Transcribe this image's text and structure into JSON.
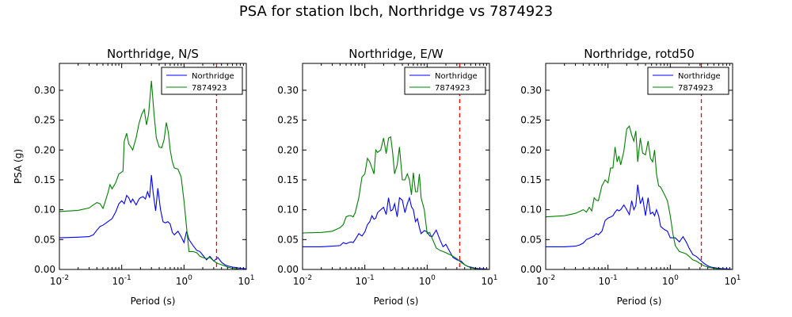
{
  "figure": {
    "title": "PSA for station lbch, Northridge vs 7874923"
  },
  "colors": {
    "northridge": "#0000ff",
    "other": "#008000",
    "marker": "#ff0000",
    "axis": "#000000"
  },
  "chart_data": [
    {
      "type": "line",
      "title": "Northridge, N/S",
      "xlabel": "Period (s)",
      "ylabel": "PSA (g)",
      "xscale": "log",
      "xlim": [
        0.01,
        10
      ],
      "ylim": [
        0,
        0.345
      ],
      "x_ticks": [
        {
          "value": 0.01,
          "base": "10",
          "exp": "-2"
        },
        {
          "value": 0.1,
          "base": "10",
          "exp": "-1"
        },
        {
          "value": 1,
          "base": "10",
          "exp": "0"
        },
        {
          "value": 10,
          "base": "10",
          "exp": "1"
        }
      ],
      "y_ticks": [
        0.0,
        0.05,
        0.1,
        0.15,
        0.2,
        0.25,
        0.3
      ],
      "y_tick_labels": [
        "0.00",
        "0.05",
        "0.10",
        "0.15",
        "0.20",
        "0.25",
        "0.30"
      ],
      "legend": {
        "position": "top-right",
        "entries": [
          "Northridge",
          "7874923"
        ]
      },
      "marker_line_x": 3.33,
      "series": [
        {
          "name": "Northridge",
          "x": [
            0.01,
            0.02,
            0.03,
            0.035,
            0.04,
            0.045,
            0.05,
            0.06,
            0.07,
            0.08,
            0.09,
            0.1,
            0.11,
            0.12,
            0.13,
            0.14,
            0.15,
            0.17,
            0.19,
            0.2,
            0.22,
            0.24,
            0.26,
            0.28,
            0.3,
            0.32,
            0.35,
            0.38,
            0.42,
            0.46,
            0.5,
            0.55,
            0.6,
            0.65,
            0.7,
            0.8,
            0.9,
            1.0,
            1.1,
            1.2,
            1.4,
            1.6,
            1.8,
            2.0,
            2.3,
            2.6,
            3.0,
            3.5,
            4.0,
            4.5,
            5.0,
            6.0,
            7.0,
            8.0,
            10.0
          ],
          "values": [
            0.053,
            0.054,
            0.055,
            0.058,
            0.066,
            0.072,
            0.074,
            0.08,
            0.085,
            0.096,
            0.11,
            0.115,
            0.11,
            0.124,
            0.12,
            0.112,
            0.118,
            0.108,
            0.118,
            0.12,
            0.122,
            0.118,
            0.13,
            0.12,
            0.158,
            0.128,
            0.098,
            0.136,
            0.1,
            0.08,
            0.078,
            0.08,
            0.076,
            0.062,
            0.058,
            0.064,
            0.055,
            0.045,
            0.064,
            0.05,
            0.04,
            0.032,
            0.03,
            0.024,
            0.016,
            0.022,
            0.014,
            0.02,
            0.012,
            0.008,
            0.006,
            0.004,
            0.003,
            0.002,
            0.001
          ]
        },
        {
          "name": "7874923",
          "x": [
            0.01,
            0.02,
            0.03,
            0.035,
            0.04,
            0.045,
            0.05,
            0.055,
            0.06,
            0.065,
            0.07,
            0.08,
            0.09,
            0.1,
            0.105,
            0.11,
            0.12,
            0.13,
            0.14,
            0.15,
            0.17,
            0.19,
            0.21,
            0.23,
            0.25,
            0.27,
            0.3,
            0.33,
            0.36,
            0.4,
            0.44,
            0.48,
            0.52,
            0.56,
            0.6,
            0.65,
            0.7,
            0.8,
            0.9,
            1.0,
            1.1,
            1.2,
            1.4,
            1.6,
            1.8,
            2.0,
            2.3,
            2.6,
            3.0,
            3.5,
            4.0,
            4.5,
            5.0,
            6.0,
            7.0,
            8.0,
            10.0
          ],
          "values": [
            0.097,
            0.099,
            0.103,
            0.108,
            0.112,
            0.11,
            0.102,
            0.115,
            0.128,
            0.142,
            0.135,
            0.145,
            0.16,
            0.163,
            0.165,
            0.215,
            0.228,
            0.21,
            0.205,
            0.2,
            0.22,
            0.245,
            0.26,
            0.268,
            0.242,
            0.26,
            0.316,
            0.26,
            0.22,
            0.205,
            0.204,
            0.218,
            0.246,
            0.23,
            0.2,
            0.18,
            0.17,
            0.168,
            0.155,
            0.115,
            0.07,
            0.03,
            0.03,
            0.028,
            0.022,
            0.02,
            0.018,
            0.02,
            0.014,
            0.01,
            0.008,
            0.006,
            0.004,
            0.002,
            0.001,
            0.0,
            0.0
          ]
        }
      ]
    },
    {
      "type": "line",
      "title": "Northridge, E/W",
      "xlabel": "Period (s)",
      "ylabel": "",
      "xscale": "log",
      "xlim": [
        0.01,
        10
      ],
      "ylim": [
        0,
        0.345
      ],
      "x_ticks": [
        {
          "value": 0.01,
          "base": "10",
          "exp": "-2"
        },
        {
          "value": 0.1,
          "base": "10",
          "exp": "-1"
        },
        {
          "value": 1,
          "base": "10",
          "exp": "0"
        },
        {
          "value": 10,
          "base": "10",
          "exp": "1"
        }
      ],
      "y_ticks": [
        0.0,
        0.05,
        0.1,
        0.15,
        0.2,
        0.25,
        0.3
      ],
      "y_tick_labels": [
        "0.00",
        "0.05",
        "0.10",
        "0.15",
        "0.20",
        "0.25",
        "0.30"
      ],
      "legend": {
        "position": "top-right",
        "entries": [
          "Northridge",
          "7874923"
        ]
      },
      "marker_line_x": 3.33,
      "series": [
        {
          "name": "Northridge",
          "x": [
            0.01,
            0.02,
            0.03,
            0.04,
            0.045,
            0.05,
            0.055,
            0.06,
            0.065,
            0.07,
            0.08,
            0.09,
            0.1,
            0.11,
            0.12,
            0.13,
            0.14,
            0.15,
            0.16,
            0.18,
            0.2,
            0.22,
            0.24,
            0.26,
            0.28,
            0.3,
            0.33,
            0.36,
            0.4,
            0.44,
            0.48,
            0.52,
            0.56,
            0.6,
            0.65,
            0.7,
            0.75,
            0.8,
            0.9,
            1.0,
            1.1,
            1.2,
            1.4,
            1.6,
            1.8,
            2.0,
            2.3,
            2.6,
            3.0,
            3.5,
            4.0,
            4.5,
            5.0,
            6.0,
            7.0,
            8.0,
            10.0
          ],
          "values": [
            0.038,
            0.038,
            0.039,
            0.04,
            0.045,
            0.043,
            0.045,
            0.046,
            0.045,
            0.05,
            0.06,
            0.056,
            0.063,
            0.075,
            0.08,
            0.09,
            0.084,
            0.086,
            0.095,
            0.1,
            0.104,
            0.092,
            0.12,
            0.098,
            0.1,
            0.11,
            0.088,
            0.12,
            0.116,
            0.095,
            0.11,
            0.12,
            0.105,
            0.1,
            0.08,
            0.085,
            0.07,
            0.06,
            0.065,
            0.063,
            0.056,
            0.055,
            0.066,
            0.05,
            0.038,
            0.042,
            0.03,
            0.02,
            0.016,
            0.014,
            0.008,
            0.005,
            0.004,
            0.002,
            0.001,
            0.001,
            0.0
          ]
        },
        {
          "name": "7874923",
          "x": [
            0.01,
            0.02,
            0.03,
            0.04,
            0.045,
            0.05,
            0.055,
            0.06,
            0.065,
            0.07,
            0.08,
            0.09,
            0.1,
            0.11,
            0.12,
            0.13,
            0.14,
            0.15,
            0.16,
            0.18,
            0.2,
            0.22,
            0.24,
            0.26,
            0.28,
            0.3,
            0.33,
            0.36,
            0.4,
            0.44,
            0.48,
            0.52,
            0.56,
            0.6,
            0.65,
            0.7,
            0.75,
            0.8,
            0.9,
            1.0,
            1.1,
            1.2,
            1.4,
            1.6,
            1.8,
            2.0,
            2.3,
            2.6,
            3.0,
            3.5,
            4.0,
            4.5,
            5.0,
            6.0,
            7.0,
            8.0,
            10.0
          ],
          "values": [
            0.061,
            0.062,
            0.064,
            0.07,
            0.075,
            0.088,
            0.09,
            0.09,
            0.088,
            0.095,
            0.12,
            0.155,
            0.16,
            0.186,
            0.18,
            0.17,
            0.16,
            0.2,
            0.196,
            0.2,
            0.22,
            0.194,
            0.22,
            0.222,
            0.195,
            0.16,
            0.175,
            0.205,
            0.15,
            0.15,
            0.16,
            0.15,
            0.125,
            0.162,
            0.13,
            0.13,
            0.16,
            0.12,
            0.1,
            0.06,
            0.062,
            0.052,
            0.036,
            0.032,
            0.03,
            0.028,
            0.025,
            0.022,
            0.018,
            0.012,
            0.008,
            0.005,
            0.003,
            0.001,
            0.0,
            0.0,
            0.0
          ]
        }
      ]
    },
    {
      "type": "line",
      "title": "Northridge, rotd50",
      "xlabel": "Period (s)",
      "ylabel": "",
      "xscale": "log",
      "xlim": [
        0.01,
        10
      ],
      "ylim": [
        0,
        0.345
      ],
      "x_ticks": [
        {
          "value": 0.01,
          "base": "10",
          "exp": "-2"
        },
        {
          "value": 0.1,
          "base": "10",
          "exp": "-1"
        },
        {
          "value": 1,
          "base": "10",
          "exp": "0"
        },
        {
          "value": 10,
          "base": "10",
          "exp": "1"
        }
      ],
      "y_ticks": [
        0.0,
        0.05,
        0.1,
        0.15,
        0.2,
        0.25,
        0.3
      ],
      "y_tick_labels": [
        "0.00",
        "0.05",
        "0.10",
        "0.15",
        "0.20",
        "0.25",
        "0.30"
      ],
      "legend": {
        "position": "top-right",
        "entries": [
          "Northridge",
          "7874923"
        ]
      },
      "marker_line_x": 3.15,
      "series": [
        {
          "name": "Northridge",
          "x": [
            0.01,
            0.02,
            0.03,
            0.035,
            0.04,
            0.045,
            0.05,
            0.055,
            0.06,
            0.065,
            0.07,
            0.08,
            0.09,
            0.1,
            0.11,
            0.12,
            0.13,
            0.14,
            0.15,
            0.16,
            0.18,
            0.2,
            0.22,
            0.24,
            0.26,
            0.28,
            0.3,
            0.33,
            0.36,
            0.4,
            0.44,
            0.48,
            0.52,
            0.56,
            0.6,
            0.65,
            0.7,
            0.8,
            0.9,
            1.0,
            1.1,
            1.2,
            1.4,
            1.6,
            1.8,
            2.0,
            2.3,
            2.6,
            3.0,
            3.5,
            4.0,
            4.5,
            5.0,
            6.0,
            7.0,
            8.0,
            10.0
          ],
          "values": [
            0.038,
            0.038,
            0.039,
            0.041,
            0.044,
            0.05,
            0.052,
            0.054,
            0.056,
            0.06,
            0.058,
            0.064,
            0.082,
            0.086,
            0.088,
            0.09,
            0.096,
            0.1,
            0.098,
            0.1,
            0.108,
            0.1,
            0.092,
            0.115,
            0.1,
            0.107,
            0.142,
            0.11,
            0.12,
            0.09,
            0.12,
            0.093,
            0.096,
            0.09,
            0.1,
            0.09,
            0.072,
            0.067,
            0.064,
            0.053,
            0.053,
            0.053,
            0.046,
            0.055,
            0.046,
            0.036,
            0.025,
            0.022,
            0.016,
            0.01,
            0.006,
            0.004,
            0.003,
            0.002,
            0.001,
            0.001,
            0.0
          ]
        },
        {
          "name": "7874923",
          "x": [
            0.01,
            0.02,
            0.03,
            0.035,
            0.04,
            0.045,
            0.05,
            0.055,
            0.06,
            0.065,
            0.07,
            0.08,
            0.09,
            0.1,
            0.11,
            0.12,
            0.13,
            0.14,
            0.15,
            0.16,
            0.18,
            0.2,
            0.22,
            0.24,
            0.26,
            0.28,
            0.3,
            0.33,
            0.36,
            0.4,
            0.44,
            0.48,
            0.52,
            0.56,
            0.6,
            0.65,
            0.7,
            0.8,
            0.9,
            1.0,
            1.1,
            1.2,
            1.4,
            1.6,
            1.8,
            2.0,
            2.3,
            2.6,
            3.0,
            3.5,
            4.0,
            4.5,
            5.0,
            6.0,
            7.0,
            8.0,
            10.0
          ],
          "values": [
            0.088,
            0.09,
            0.094,
            0.097,
            0.1,
            0.096,
            0.104,
            0.098,
            0.12,
            0.116,
            0.115,
            0.14,
            0.15,
            0.145,
            0.17,
            0.17,
            0.205,
            0.18,
            0.19,
            0.175,
            0.198,
            0.235,
            0.24,
            0.225,
            0.215,
            0.232,
            0.18,
            0.22,
            0.195,
            0.192,
            0.215,
            0.186,
            0.18,
            0.2,
            0.16,
            0.14,
            0.138,
            0.126,
            0.115,
            0.09,
            0.06,
            0.04,
            0.03,
            0.028,
            0.026,
            0.022,
            0.016,
            0.014,
            0.01,
            0.006,
            0.004,
            0.003,
            0.002,
            0.001,
            0.0,
            0.0,
            0.0
          ]
        }
      ]
    }
  ]
}
